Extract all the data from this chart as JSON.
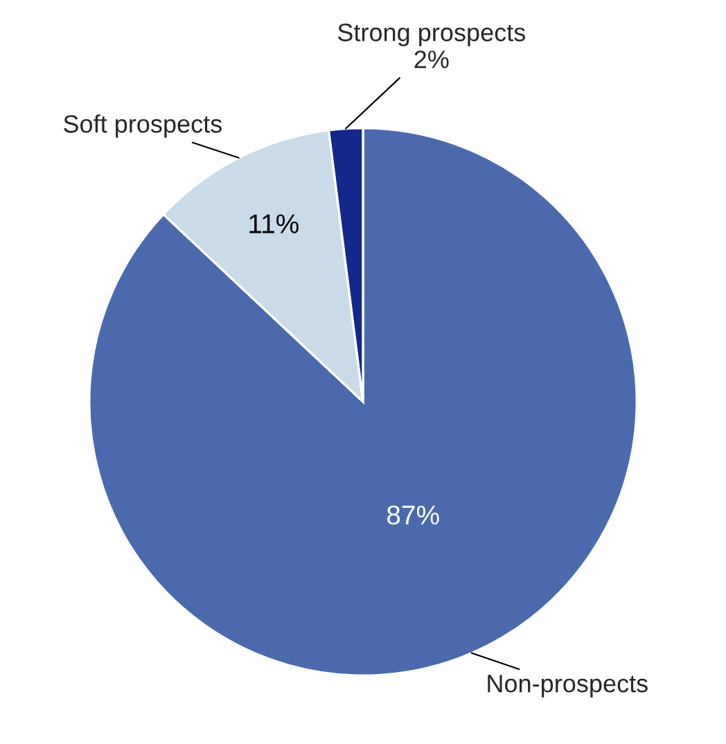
{
  "chart_data": {
    "type": "pie",
    "categories": [
      "Non-prospects",
      "Soft prospects",
      "Strong prospects"
    ],
    "values": [
      87,
      11,
      2
    ],
    "colors": [
      "#4a6aad",
      "#c9dbe9",
      "#13288a"
    ],
    "value_labels": [
      "87%",
      "11%",
      "2%"
    ]
  }
}
